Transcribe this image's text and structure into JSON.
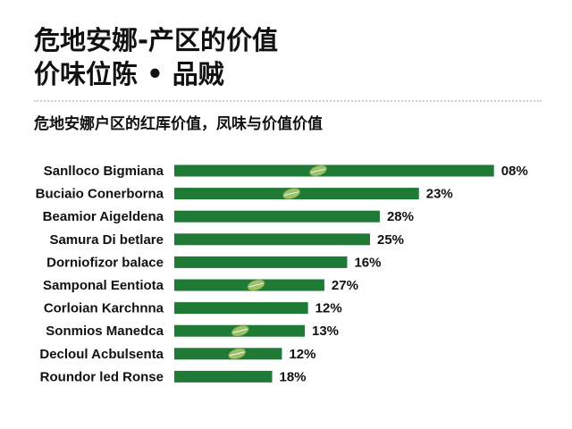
{
  "header": {
    "title_line1": "危地安娜-产区的价值",
    "title_line2": "价味位陈 • 品贼",
    "subtitle": "危地安娜户区的红厍价值，凤味与价值价值"
  },
  "colors": {
    "bar": "#1e7a35",
    "leaf": "#9bc26a",
    "divider": "#cfcfcf"
  },
  "chart_data": {
    "type": "bar",
    "orientation": "horizontal",
    "categories": [
      "Sanlloco Bigmiana",
      "Buciaio Conerborna",
      "Beamior Aigeldena",
      "Samura Di betlare",
      "Dorniofizor balace",
      "Samponal Eentiota",
      "Corloian Karchnna",
      "Sonmios Manedca",
      "Decloul Acbulsenta",
      "Roundor led Ronse"
    ],
    "values": [
      98,
      75,
      63,
      60,
      53,
      46,
      41,
      40,
      33,
      30
    ],
    "value_labels": [
      "08%",
      "23%",
      "28%",
      "25%",
      "16%",
      "27%",
      "12%",
      "13%",
      "12%",
      "18%"
    ],
    "leaf_marks": [
      0,
      1,
      5,
      7,
      8
    ],
    "xlim": [
      0,
      100
    ],
    "grid": false,
    "legend": "none"
  }
}
